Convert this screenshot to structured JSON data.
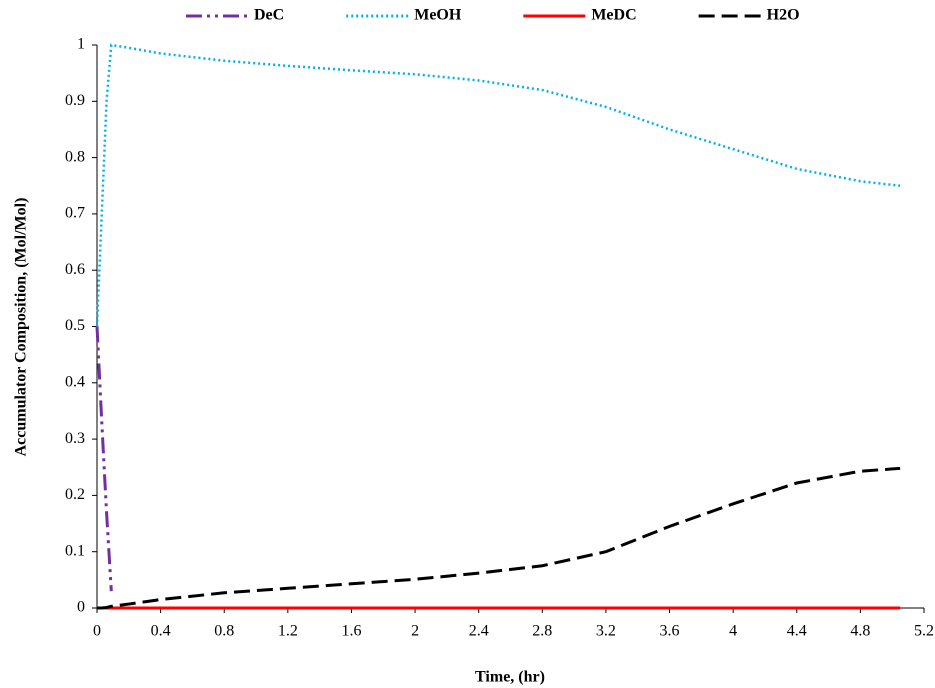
{
  "chart_data": {
    "type": "line",
    "x_label": "Time, (hr)",
    "y_label": "Accumulator Composition, (Mol/Mol)",
    "x": [
      0,
      0.03,
      0.06,
      0.09,
      0.2,
      0.4,
      0.8,
      1.2,
      1.6,
      2.0,
      2.4,
      2.8,
      3.2,
      3.6,
      4.0,
      4.4,
      4.8,
      5.05
    ],
    "series": [
      {
        "name": "DeC",
        "color": "#7030a0",
        "dash": "dash-dot",
        "values": [
          0.5,
          0.33,
          0.17,
          0.03,
          null,
          null,
          null,
          null,
          null,
          null,
          null,
          null,
          null,
          null,
          null,
          null,
          null,
          null
        ]
      },
      {
        "name": "MeOH",
        "color": "#00b0f0",
        "dash": "dot",
        "values": [
          0.5,
          0.7,
          0.9,
          1.0,
          0.995,
          0.985,
          0.972,
          0.963,
          0.955,
          0.948,
          0.937,
          0.92,
          0.89,
          0.85,
          0.815,
          0.78,
          0.758,
          0.75
        ]
      },
      {
        "name": "MeDC",
        "color": "#ff0000",
        "dash": "solid",
        "values": [
          0,
          0,
          0,
          0,
          0,
          0,
          0,
          0,
          0,
          0,
          0,
          0,
          0,
          0,
          0,
          0,
          0,
          0
        ]
      },
      {
        "name": "H2O",
        "color": "#000000",
        "dash": "dash",
        "values": [
          0,
          0,
          0.001,
          0.003,
          0.007,
          0.015,
          0.027,
          0.035,
          0.043,
          0.051,
          0.062,
          0.075,
          0.1,
          0.145,
          0.185,
          0.222,
          0.243,
          0.248
        ]
      }
    ],
    "xlim": [
      0,
      5.2
    ],
    "xticks": [
      0,
      0.4,
      0.8,
      1.2,
      1.6,
      2,
      2.4,
      2.8,
      3.2,
      3.6,
      4,
      4.4,
      4.8,
      5.2
    ],
    "ylim": [
      0,
      1
    ],
    "yticks": [
      0,
      0.1,
      0.2,
      0.3,
      0.4,
      0.5,
      0.6,
      0.7,
      0.8,
      0.9,
      1
    ],
    "grid": false,
    "legend": "top"
  }
}
